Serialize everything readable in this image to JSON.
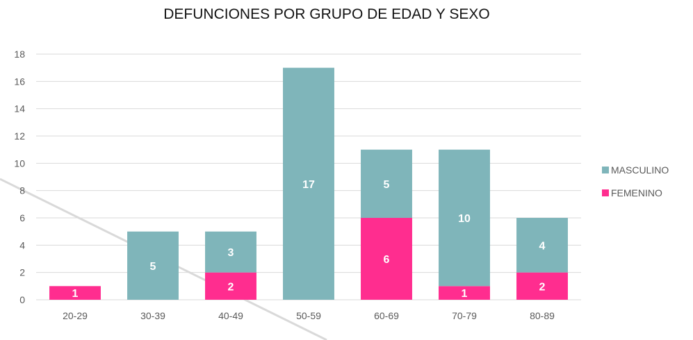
{
  "chart_data": {
    "type": "bar",
    "stacked": true,
    "title": "DEFUNCIONES POR GRUPO DE EDAD Y SEXO",
    "xlabel": "",
    "ylabel": "",
    "ylim": [
      0,
      18
    ],
    "yticks": [
      0,
      2,
      4,
      6,
      8,
      10,
      12,
      14,
      16,
      18
    ],
    "grid": true,
    "legend_position": "right",
    "categories": [
      "20-29",
      "30-39",
      "40-49",
      "50-59",
      "60-69",
      "70-79",
      "80-89"
    ],
    "series": [
      {
        "name": "FEMENINO",
        "color": "#FF2D8F",
        "values": [
          1,
          0,
          2,
          0,
          6,
          1,
          2
        ]
      },
      {
        "name": "MASCULINO",
        "color": "#7FB5BA",
        "values": [
          0,
          5,
          3,
          17,
          5,
          10,
          4
        ]
      }
    ],
    "legend": [
      {
        "name": "MASCULINO",
        "color": "#7FB5BA"
      },
      {
        "name": "FEMENINO",
        "color": "#FF2D8F"
      }
    ],
    "data_labels": true
  }
}
